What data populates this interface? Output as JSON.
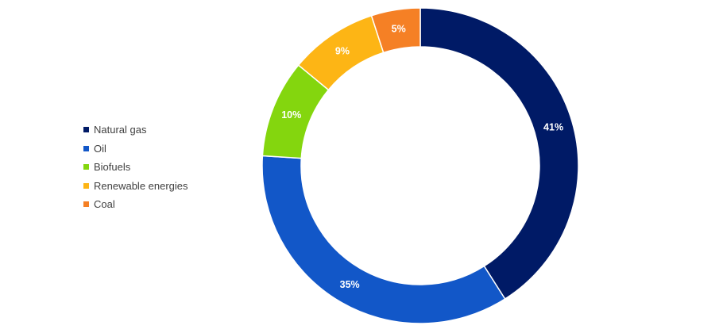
{
  "chart_data": {
    "type": "pie",
    "variant": "donut",
    "title": "",
    "categories": [
      "Natural gas",
      "Oil",
      "Biofuels",
      "Renewable energies",
      "Coal"
    ],
    "values": [
      41,
      35,
      10,
      9,
      5
    ],
    "value_labels": [
      "41%",
      "35%",
      "10%",
      "9%",
      "5%"
    ],
    "colors": [
      "#001a66",
      "#1257c8",
      "#84d60e",
      "#fdb515",
      "#f58025"
    ],
    "label_color": "#ffffff",
    "legend_position": "left"
  }
}
